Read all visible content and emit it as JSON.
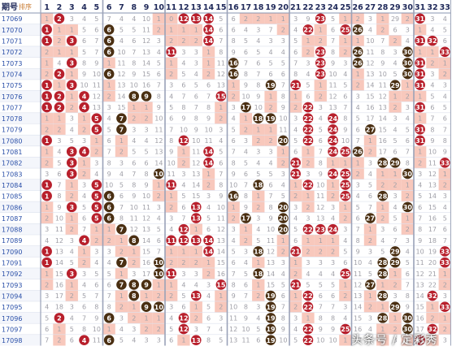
{
  "header": {
    "period_label": "期号",
    "sort_label": "排序",
    "columns": [
      "1",
      "2",
      "3",
      "4",
      "5",
      "6",
      "7",
      "8",
      "9",
      "10",
      "11",
      "12",
      "13",
      "14",
      "15",
      "16",
      "17",
      "18",
      "19",
      "20",
      "21",
      "22",
      "23",
      "24",
      "25",
      "26",
      "27",
      "28",
      "29",
      "30",
      "31",
      "32",
      "33"
    ]
  },
  "zones": [
    {
      "start": 1,
      "end": 5,
      "ball_color": "#b8202c"
    },
    {
      "start": 6,
      "end": 10,
      "ball_color": "#4a2f12"
    },
    {
      "start": 11,
      "end": 15,
      "ball_color": "#b8202c"
    },
    {
      "start": 16,
      "end": 20,
      "ball_color": "#4a2f12"
    },
    {
      "start": 21,
      "end": 25,
      "ball_color": "#b8202c"
    },
    {
      "start": 26,
      "end": 30,
      "ball_color": "#4a2f12"
    },
    {
      "start": 31,
      "end": 33,
      "ball_color": "#b8202c"
    }
  ],
  "colors": {
    "highlight": "#f8c8bc",
    "zone_line": "#9aa2b8",
    "text": "#a0a0a8",
    "period_text": "#2a4fa8",
    "header_text": "#202a5a"
  },
  "periods": [
    "17069",
    "17070",
    "17071",
    "17072",
    "17073",
    "17074",
    "17075",
    "17076",
    "17077",
    "17078",
    "17079",
    "17080",
    "17081",
    "17082",
    "17083",
    "17084",
    "17085",
    "17086",
    "17087",
    "17088",
    "17089",
    "17090",
    "17091",
    "17092",
    "17093",
    "17094",
    "17095",
    "17096",
    "17097",
    "17098"
  ],
  "rows": [
    {
      "w": [
        2,
        12,
        13,
        14,
        23,
        31
      ],
      "v": [
        1,
        0,
        3,
        4,
        5,
        7,
        4,
        4,
        10,
        1,
        0,
        0,
        0,
        0,
        5,
        6,
        2,
        2,
        1,
        1,
        3,
        9,
        0,
        5,
        1,
        2,
        3,
        1,
        29,
        2,
        0,
        3,
        4
      ]
    },
    {
      "w": [
        1,
        6,
        14,
        22,
        25,
        26
      ],
      "v": [
        0,
        1,
        1,
        5,
        6,
        0,
        5,
        5,
        11,
        2,
        1,
        1,
        1,
        0,
        6,
        6,
        4,
        3,
        7,
        2,
        4,
        0,
        1,
        6,
        0,
        0,
        4,
        2,
        6,
        3,
        1,
        4,
        5
      ]
    },
    {
      "w": [
        1,
        3,
        6,
        14,
        31,
        32
      ],
      "v": [
        0,
        2,
        0,
        6,
        7,
        0,
        4,
        6,
        12,
        3,
        2,
        2,
        2,
        0,
        7,
        8,
        5,
        4,
        3,
        3,
        5,
        1,
        2,
        7,
        1,
        1,
        10,
        7,
        2,
        4,
        0,
        0,
        6
      ]
    },
    {
      "w": [
        6,
        11,
        23,
        26,
        30,
        33
      ],
      "v": [
        2,
        1,
        1,
        5,
        7,
        0,
        10,
        7,
        13,
        4,
        0,
        3,
        3,
        1,
        8,
        9,
        6,
        5,
        4,
        4,
        6,
        2,
        0,
        8,
        2,
        0,
        11,
        8,
        3,
        0,
        1,
        1,
        0
      ]
    },
    {
      "w": [
        3,
        16,
        23,
        26,
        30,
        31
      ],
      "v": [
        1,
        4,
        0,
        8,
        9,
        1,
        11,
        8,
        14,
        5,
        1,
        4,
        3,
        1,
        11,
        0,
        7,
        6,
        5,
        5,
        7,
        3,
        0,
        9,
        3,
        0,
        12,
        9,
        4,
        0,
        0,
        2,
        1
      ]
    },
    {
      "w": [
        2,
        6,
        16,
        23,
        30,
        31
      ],
      "v": [
        2,
        0,
        1,
        9,
        10,
        0,
        12,
        9,
        15,
        6,
        2,
        5,
        4,
        2,
        12,
        0,
        8,
        7,
        6,
        6,
        8,
        4,
        0,
        10,
        4,
        1,
        13,
        10,
        5,
        0,
        0,
        3,
        2
      ]
    },
    {
      "w": [
        1,
        3,
        19,
        21,
        29,
        31
      ],
      "v": [
        0,
        1,
        0,
        10,
        11,
        1,
        13,
        10,
        16,
        7,
        3,
        6,
        5,
        6,
        13,
        1,
        9,
        8,
        0,
        7,
        0,
        5,
        1,
        11,
        5,
        2,
        14,
        11,
        0,
        1,
        0,
        4,
        3
      ]
    },
    {
      "w": [
        1,
        2,
        4,
        8,
        9,
        15
      ],
      "v": [
        0,
        0,
        1,
        0,
        12,
        2,
        14,
        0,
        0,
        8,
        4,
        7,
        6,
        7,
        0,
        2,
        10,
        9,
        1,
        8,
        1,
        6,
        2,
        12,
        6,
        3,
        15,
        12,
        1,
        2,
        1,
        5,
        4
      ]
    },
    {
      "w": [
        1,
        2,
        4,
        17,
        22,
        31
      ],
      "v": [
        0,
        0,
        2,
        0,
        13,
        3,
        15,
        1,
        1,
        9,
        5,
        8,
        7,
        8,
        1,
        3,
        0,
        10,
        2,
        9,
        2,
        0,
        3,
        13,
        7,
        4,
        16,
        13,
        2,
        3,
        0,
        6,
        5
      ]
    },
    {
      "w": [
        5,
        7,
        18,
        19,
        22,
        24
      ],
      "v": [
        1,
        1,
        3,
        1,
        0,
        4,
        0,
        2,
        2,
        10,
        6,
        9,
        8,
        9,
        2,
        4,
        1,
        0,
        0,
        10,
        3,
        0,
        4,
        0,
        8,
        5,
        17,
        14,
        3,
        4,
        1,
        7,
        6
      ]
    },
    {
      "w": [
        5,
        7,
        22,
        24,
        27,
        31
      ],
      "v": [
        2,
        2,
        4,
        2,
        0,
        5,
        0,
        3,
        3,
        11,
        7,
        10,
        9,
        10,
        3,
        5,
        2,
        1,
        1,
        11,
        4,
        0,
        5,
        0,
        9,
        6,
        0,
        15,
        4,
        5,
        0,
        8,
        7
      ]
    },
    {
      "w": [
        1,
        12,
        20,
        22,
        24,
        31
      ],
      "v": [
        0,
        3,
        5,
        3,
        1,
        6,
        1,
        4,
        4,
        12,
        8,
        0,
        10,
        11,
        4,
        6,
        3,
        2,
        2,
        0,
        5,
        0,
        6,
        0,
        10,
        7,
        1,
        16,
        5,
        6,
        0,
        9,
        8
      ]
    },
    {
      "w": [
        3,
        4,
        14,
        24,
        25,
        26
      ],
      "v": [
        1,
        4,
        0,
        0,
        2,
        7,
        2,
        5,
        5,
        13,
        9,
        1,
        11,
        0,
        5,
        7,
        4,
        3,
        3,
        1,
        6,
        1,
        7,
        0,
        0,
        0,
        2,
        17,
        6,
        7,
        1,
        10,
        9
      ]
    },
    {
      "w": [
        3,
        14,
        21,
        28,
        29,
        33
      ],
      "v": [
        2,
        5,
        0,
        1,
        3,
        8,
        3,
        6,
        6,
        14,
        10,
        2,
        12,
        0,
        6,
        8,
        5,
        4,
        4,
        2,
        0,
        2,
        8,
        1,
        1,
        1,
        3,
        0,
        0,
        8,
        2,
        11,
        0
      ]
    },
    {
      "w": [
        3,
        10,
        21,
        24,
        25,
        30
      ],
      "v": [
        3,
        6,
        0,
        2,
        4,
        9,
        4,
        7,
        8,
        0,
        11,
        3,
        13,
        1,
        7,
        9,
        6,
        5,
        5,
        3,
        0,
        3,
        9,
        0,
        0,
        2,
        4,
        1,
        1,
        0,
        3,
        12,
        1
      ]
    },
    {
      "w": [
        1,
        5,
        11,
        18,
        22,
        25
      ],
      "v": [
        0,
        7,
        1,
        3,
        0,
        10,
        5,
        8,
        9,
        1,
        0,
        4,
        14,
        2,
        8,
        10,
        7,
        0,
        6,
        4,
        1,
        0,
        10,
        1,
        0,
        3,
        5,
        2,
        2,
        1,
        4,
        13,
        2
      ]
    },
    {
      "w": [
        1,
        5,
        6,
        16,
        25,
        28
      ],
      "v": [
        0,
        8,
        2,
        4,
        0,
        0,
        6,
        9,
        10,
        2,
        1,
        5,
        15,
        3,
        9,
        0,
        8,
        1,
        7,
        5,
        2,
        1,
        11,
        2,
        0,
        4,
        6,
        0,
        3,
        2,
        5,
        14,
        3
      ]
    },
    {
      "w": [
        3,
        5,
        6,
        13,
        20,
        30
      ],
      "v": [
        1,
        9,
        0,
        5,
        0,
        0,
        7,
        10,
        11,
        3,
        2,
        6,
        0,
        4,
        10,
        1,
        9,
        2,
        8,
        0,
        3,
        2,
        12,
        3,
        1,
        5,
        7,
        1,
        4,
        0,
        6,
        15,
        4
      ]
    },
    {
      "w": [
        5,
        6,
        13,
        17,
        20,
        27
      ],
      "v": [
        2,
        10,
        1,
        6,
        0,
        0,
        8,
        11,
        12,
        4,
        3,
        7,
        0,
        5,
        11,
        2,
        0,
        3,
        9,
        0,
        4,
        3,
        13,
        4,
        2,
        6,
        0,
        2,
        5,
        1,
        7,
        16,
        5
      ]
    },
    {
      "w": [
        7,
        12,
        20,
        22,
        23,
        24
      ],
      "v": [
        3,
        11,
        2,
        7,
        1,
        1,
        0,
        12,
        13,
        5,
        4,
        0,
        1,
        6,
        12,
        3,
        1,
        4,
        10,
        0,
        5,
        0,
        0,
        0,
        3,
        7,
        1,
        3,
        6,
        2,
        8,
        17,
        6
      ]
    },
    {
      "w": [
        4,
        8,
        11,
        12,
        13,
        14
      ],
      "v": [
        4,
        12,
        3,
        0,
        2,
        2,
        1,
        0,
        14,
        6,
        0,
        0,
        0,
        0,
        13,
        4,
        2,
        5,
        11,
        1,
        6,
        1,
        1,
        1,
        4,
        8,
        2,
        4,
        7,
        3,
        9,
        18,
        7
      ]
    },
    {
      "w": [
        1,
        14,
        18,
        21,
        29,
        33
      ],
      "v": [
        0,
        13,
        4,
        1,
        3,
        3,
        2,
        1,
        15,
        7,
        1,
        1,
        1,
        0,
        14,
        5,
        3,
        0,
        12,
        2,
        0,
        2,
        2,
        2,
        5,
        9,
        3,
        5,
        0,
        4,
        10,
        19,
        0
      ]
    },
    {
      "w": [
        1,
        7,
        10,
        28,
        29,
        33
      ],
      "v": [
        0,
        14,
        5,
        2,
        4,
        4,
        0,
        2,
        16,
        0,
        2,
        2,
        2,
        1,
        15,
        6,
        4,
        1,
        13,
        3,
        1,
        3,
        3,
        3,
        6,
        10,
        4,
        0,
        0,
        5,
        11,
        20,
        0
      ]
    },
    {
      "w": [
        3,
        10,
        11,
        18,
        25,
        28
      ],
      "v": [
        1,
        15,
        0,
        3,
        5,
        5,
        1,
        3,
        17,
        0,
        0,
        3,
        3,
        2,
        16,
        7,
        5,
        0,
        14,
        4,
        2,
        4,
        4,
        4,
        0,
        11,
        5,
        0,
        1,
        6,
        12,
        21,
        1
      ]
    },
    {
      "w": [
        7,
        8,
        9,
        15,
        21,
        27
      ],
      "v": [
        2,
        16,
        1,
        4,
        6,
        6,
        0,
        0,
        0,
        1,
        1,
        4,
        4,
        3,
        0,
        8,
        6,
        1,
        15,
        5,
        0,
        5,
        5,
        5,
        1,
        12,
        0,
        1,
        2,
        7,
        13,
        22,
        2
      ]
    },
    {
      "w": [
        8,
        13,
        19,
        22,
        28,
        32
      ],
      "v": [
        3,
        17,
        2,
        5,
        7,
        7,
        1,
        0,
        1,
        2,
        2,
        5,
        0,
        4,
        1,
        9,
        7,
        2,
        0,
        6,
        1,
        0,
        6,
        6,
        2,
        13,
        1,
        0,
        3,
        8,
        14,
        0,
        3
      ]
    },
    {
      "w": [
        9,
        10,
        19,
        22,
        29,
        33
      ],
      "v": [
        4,
        18,
        3,
        6,
        8,
        8,
        2,
        1,
        0,
        0,
        3,
        6,
        1,
        5,
        2,
        10,
        8,
        3,
        0,
        7,
        2,
        0,
        7,
        7,
        3,
        14,
        2,
        1,
        0,
        9,
        15,
        1,
        0
      ]
    },
    {
      "w": [
        2,
        6,
        12,
        19,
        28,
        30
      ],
      "v": [
        5,
        0,
        4,
        7,
        9,
        0,
        3,
        2,
        1,
        1,
        4,
        0,
        2,
        6,
        3,
        11,
        9,
        4,
        0,
        8,
        3,
        1,
        8,
        8,
        4,
        15,
        3,
        0,
        1,
        0,
        16,
        2,
        1
      ]
    },
    {
      "w": [
        12,
        19,
        22,
        25,
        30,
        32
      ],
      "v": [
        6,
        1,
        5,
        8,
        10,
        1,
        4,
        3,
        2,
        2,
        5,
        0,
        3,
        7,
        4,
        12,
        10,
        5,
        0,
        9,
        4,
        0,
        9,
        9,
        0,
        16,
        4,
        1,
        2,
        0,
        17,
        0,
        2
      ]
    },
    {
      "w": [
        4,
        6,
        13,
        19,
        22,
        31
      ],
      "v": [
        7,
        2,
        6,
        0,
        11,
        0,
        5,
        4,
        3,
        3,
        6,
        1,
        0,
        8,
        5,
        13,
        11,
        6,
        0,
        10,
        5,
        0,
        10,
        10,
        1,
        17,
        5,
        2,
        3,
        1,
        0,
        1,
        3
      ]
    }
  ],
  "watermark": {
    "prefix": "头条号 / ",
    "name": "定彩秀"
  }
}
